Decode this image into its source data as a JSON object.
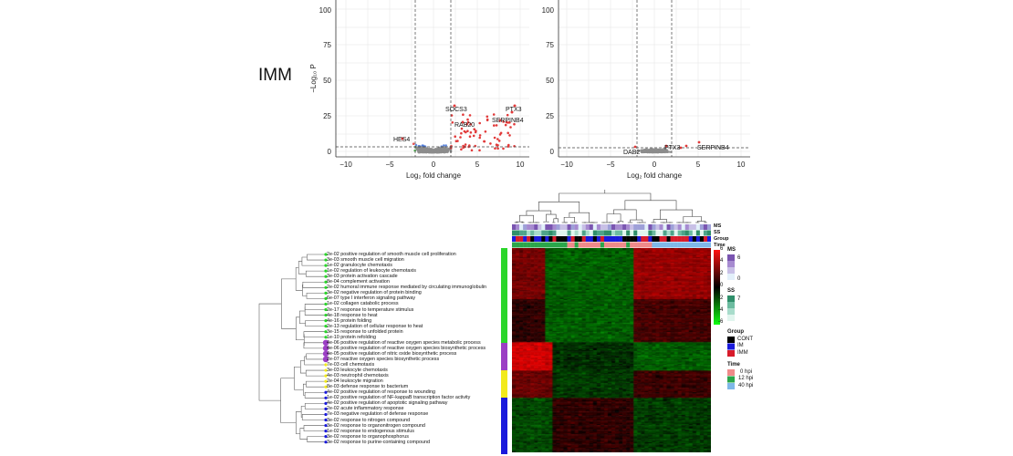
{
  "panel_label": "IMM",
  "volcano_left": {
    "ylabel": "−Log₁₀ P",
    "xlabel": "Log₂ fold change",
    "xticks": [
      "−10",
      "−5",
      "0",
      "5",
      "10"
    ],
    "yticks": [
      "0",
      "25",
      "50",
      "75",
      "100"
    ],
    "genes": [
      "SOCS3",
      "PTX3",
      "RAB20",
      "SERPINB4",
      "HES4"
    ]
  },
  "volcano_right": {
    "xlabel": "Log₂ fold change",
    "xticks": [
      "−10",
      "−5",
      "0",
      "5",
      "10"
    ],
    "yticks": [
      "0",
      "25",
      "50",
      "75",
      "100"
    ],
    "genes": [
      "DAB2",
      "PTX3",
      "SERPINB4"
    ]
  },
  "heatmap": {
    "annotation_rows": [
      "MS",
      "SS",
      "Group",
      "Time"
    ],
    "color_scale": {
      "title": "",
      "ticks": [
        "6",
        "4",
        "2",
        "0",
        "-2",
        "-4",
        "-6"
      ]
    },
    "ms_legend": {
      "title": "MS",
      "ticks": [
        "6",
        "3",
        "0"
      ]
    },
    "ss_legend": {
      "title": "SS",
      "ticks": [
        "7",
        "3.5",
        "0"
      ]
    },
    "group_legend": {
      "title": "Group",
      "items": [
        {
          "label": "CONT",
          "color": "#000000"
        },
        {
          "label": "IM",
          "color": "#1a1adc"
        },
        {
          "label": "IMM",
          "color": "#d81b2a"
        }
      ]
    },
    "time_legend": {
      "title": "Time",
      "items": [
        {
          "label": "0 hpi",
          "color": "#f08a8a"
        },
        {
          "label": "12 hpi",
          "color": "#2aa64a"
        },
        {
          "label": "40 hpi",
          "color": "#7fb8e8"
        }
      ]
    },
    "go_terms": [
      "2e-02 positive regulation of smooth muscle cell proliferation",
      "3e-03 smooth muscle cell migration",
      "1e-02 granulocyte chemotaxis",
      "1e-02 regulation of leukocyte chemotaxis",
      "3e-03 protein activation cascade",
      "8e-04 complement activation",
      "2e-02 humoral immune response mediated by circulating immunoglobulin",
      "3e-02 negative regulation of protein binding",
      "6e-07 type I interferon signaling pathway",
      "1e-02 collagen catabolic process",
      "2e-17 response to temperature stimulus",
      "4e-18 response to heat",
      "4e-16 protein folding",
      "2e-13 regulation of cellular response to heat",
      "3e-15 response to unfolded protein",
      "1e-10 protein refolding",
      "4e-06 positive regulation of reactive oxygen species metabolic process",
      "4e-06 positive regulation of reactive oxygen species biosynthetic process",
      "4e-05 positive regulation of nitric oxide biosynthetic process",
      "2e-07 reactive oxygen species biosynthetic process",
      "7e-03 cell chemotaxis",
      "3e-03 leukocyte chemotaxis",
      "4e-03 neutrophil chemotaxis",
      "2e-04 leukocyte migration",
      "8e-03 defense response to bacterium",
      "4e-02 positive regulation of response to wounding",
      "1e-02 positive regulation of NF-kappaB transcription factor activity",
      "4e-02 positive regulation of apoptotic signaling pathway",
      "2e-02 acute inflammatory response",
      "7e-03 negative regulation of defense response",
      "3e-02 response to nitrogen compound",
      "3e-02 response to organonitrogen compound",
      "1e-02 response to endogenous stimulus",
      "3e-02 response to organophosphorus",
      "3e-02 response to purine-containing compound"
    ],
    "cluster_colors": [
      "#2bd62b",
      "#9b3fc4",
      "#f2ea1c",
      "#1a1adc"
    ]
  }
}
